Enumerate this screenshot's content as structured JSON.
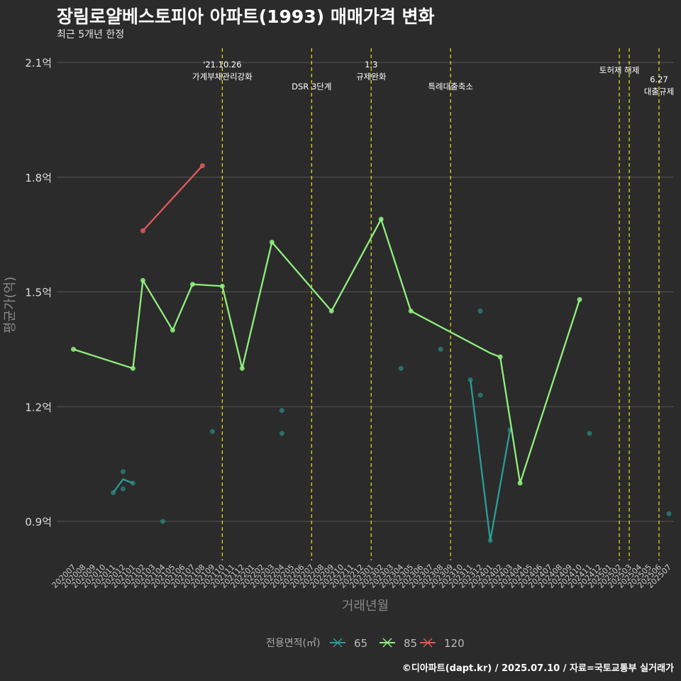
{
  "chart_data": {
    "type": "line",
    "title": "장림로얄베스토피아 아파트(1993) 매매가격 변화",
    "subtitle": "최근 5개년 한정",
    "xlabel": "거래년월",
    "ylabel": "평균가(억)",
    "caption": "©디아파트(dapt.kr) / 2025.07.10 / 자료=국토교통부 실거래가",
    "y_ticks": [
      "0.9억",
      "1.2억",
      "1.5억",
      "1.8억",
      "2.1억"
    ],
    "y_tick_values": [
      0.9,
      1.2,
      1.5,
      1.8,
      2.1
    ],
    "ylim": [
      0.8,
      2.15
    ],
    "x_categories": [
      "202007",
      "202008",
      "202009",
      "202010",
      "202011",
      "202012",
      "202101",
      "202102",
      "202103",
      "202104",
      "202105",
      "202106",
      "202107",
      "202108",
      "202109",
      "202110",
      "202111",
      "202112",
      "202201",
      "202202",
      "202203",
      "202204",
      "202205",
      "202206",
      "202207",
      "202208",
      "202209",
      "202210",
      "202211",
      "202212",
      "202301",
      "202302",
      "202303",
      "202304",
      "202305",
      "202306",
      "202307",
      "202308",
      "202309",
      "202310",
      "202311",
      "202312",
      "202401",
      "202402",
      "202403",
      "202404",
      "202405",
      "202406",
      "202407",
      "202408",
      "202409",
      "202410",
      "202411",
      "202412",
      "202501",
      "202502",
      "202503",
      "202504",
      "202505",
      "202506",
      "202507"
    ],
    "grid": true,
    "legend": {
      "title": "전용면적(㎡)",
      "position": "bottom",
      "entries": [
        {
          "label": "65",
          "color": "#2a9d96"
        },
        {
          "label": "85",
          "color": "#90ee7e"
        },
        {
          "label": "120",
          "color": "#e05a5a"
        }
      ]
    },
    "series": [
      {
        "name": "65",
        "color": "#2a9d96",
        "line": [
          {
            "x": "202011",
            "y": 0.975
          },
          {
            "x": "202012",
            "y": 1.01
          },
          {
            "x": "202101",
            "y": 1.0
          }
        ],
        "line2": [
          {
            "x": "202311",
            "y": 1.27
          },
          {
            "x": "202401",
            "y": 0.85
          },
          {
            "x": "202403",
            "y": 1.14
          }
        ],
        "points": [
          {
            "x": "202011",
            "y": 0.975
          },
          {
            "x": "202012",
            "y": 0.985
          },
          {
            "x": "202012",
            "y": 1.03
          },
          {
            "x": "202101",
            "y": 1.0
          },
          {
            "x": "202104",
            "y": 0.9
          },
          {
            "x": "202109",
            "y": 1.135
          },
          {
            "x": "202204",
            "y": 1.19
          },
          {
            "x": "202204",
            "y": 1.13
          },
          {
            "x": "202304",
            "y": 1.3
          },
          {
            "x": "202308",
            "y": 1.35
          },
          {
            "x": "202311",
            "y": 1.27
          },
          {
            "x": "202312",
            "y": 1.45
          },
          {
            "x": "202312",
            "y": 1.23
          },
          {
            "x": "202401",
            "y": 0.85
          },
          {
            "x": "202403",
            "y": 1.14
          },
          {
            "x": "202411",
            "y": 1.13
          },
          {
            "x": "202507",
            "y": 0.92
          }
        ]
      },
      {
        "name": "85",
        "color": "#90ee7e",
        "line": [
          {
            "x": "202007",
            "y": 1.35
          },
          {
            "x": "202101",
            "y": 1.3
          },
          {
            "x": "202102",
            "y": 1.53
          },
          {
            "x": "202105",
            "y": 1.4
          },
          {
            "x": "202107",
            "y": 1.52
          },
          {
            "x": "202110",
            "y": 1.515
          },
          {
            "x": "202112",
            "y": 1.3
          },
          {
            "x": "202203",
            "y": 1.63
          },
          {
            "x": "202209",
            "y": 1.45
          },
          {
            "x": "202302",
            "y": 1.69
          },
          {
            "x": "202305",
            "y": 1.45
          },
          {
            "x": "202401",
            "y": 1.34
          },
          {
            "x": "202402",
            "y": 1.33
          },
          {
            "x": "202404",
            "y": 1.0
          },
          {
            "x": "202410",
            "y": 1.48
          }
        ],
        "points": [
          {
            "x": "202007",
            "y": 1.35
          },
          {
            "x": "202101",
            "y": 1.3
          },
          {
            "x": "202102",
            "y": 1.53
          },
          {
            "x": "202105",
            "y": 1.4
          },
          {
            "x": "202107",
            "y": 1.52
          },
          {
            "x": "202110",
            "y": 1.515
          },
          {
            "x": "202112",
            "y": 1.3
          },
          {
            "x": "202203",
            "y": 1.63
          },
          {
            "x": "202209",
            "y": 1.45
          },
          {
            "x": "202302",
            "y": 1.69
          },
          {
            "x": "202305",
            "y": 1.45
          },
          {
            "x": "202402",
            "y": 1.33
          },
          {
            "x": "202404",
            "y": 1.0
          },
          {
            "x": "202410",
            "y": 1.48
          }
        ]
      },
      {
        "name": "120",
        "color": "#e05a5a",
        "line": [
          {
            "x": "202102",
            "y": 1.66
          },
          {
            "x": "202108",
            "y": 1.83
          }
        ],
        "points": [
          {
            "x": "202102",
            "y": 1.66
          },
          {
            "x": "202108",
            "y": 1.83
          }
        ]
      }
    ],
    "events": [
      {
        "x": "202110",
        "lines": [
          "'21.10.26",
          "가계부채관리강화"
        ],
        "level": 0
      },
      {
        "x": "202207",
        "lines": [
          "DSR 3단계"
        ],
        "level": 2
      },
      {
        "x": "202301",
        "lines": [
          "1.3",
          "규제완화"
        ],
        "level": 0
      },
      {
        "x": "202309",
        "lines": [
          "특례대출축소"
        ],
        "level": 2
      },
      {
        "x": "202502",
        "lines": [
          "토허제 해제"
        ],
        "level": 1
      },
      {
        "x": "202503",
        "lines": [],
        "level": 1
      },
      {
        "x": "202506",
        "lines": [
          "6.27",
          "대출규제"
        ],
        "level": 3
      }
    ],
    "event_color": "#e6e619"
  }
}
